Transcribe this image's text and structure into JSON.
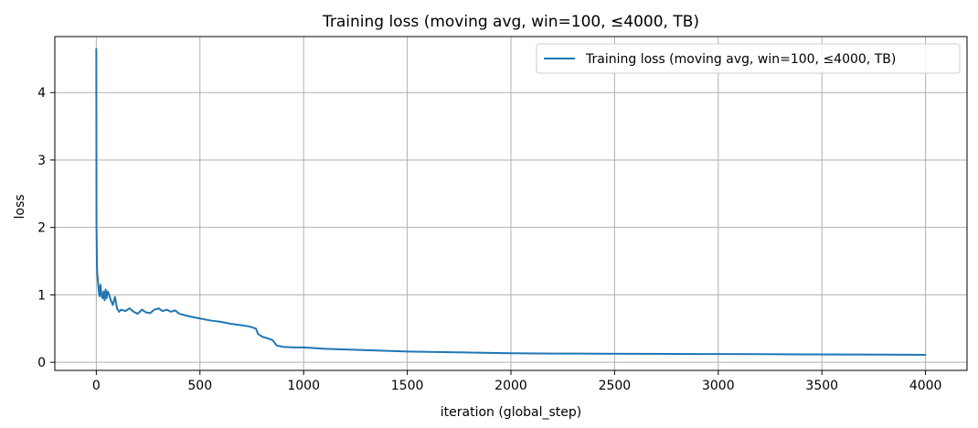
{
  "chart_data": {
    "type": "line",
    "title": "Training loss (moving avg, win=100, ≤4000, TB)",
    "xlabel": "iteration (global_step)",
    "ylabel": "loss",
    "xlim": [
      -200,
      4200
    ],
    "ylim": [
      -0.12,
      4.83
    ],
    "xticks": [
      0,
      500,
      1000,
      1500,
      2000,
      2500,
      3000,
      3500,
      4000
    ],
    "yticks": [
      0,
      1,
      2,
      3,
      4
    ],
    "grid": true,
    "legend_position": "top-right",
    "series": [
      {
        "name": "Training loss (moving avg, win=100, ≤4000, TB)",
        "color": "#1f77b4",
        "x": [
          0,
          1,
          2,
          3,
          5,
          8,
          12,
          16,
          20,
          25,
          30,
          35,
          40,
          45,
          50,
          55,
          60,
          70,
          80,
          90,
          100,
          110,
          120,
          140,
          160,
          180,
          200,
          220,
          240,
          260,
          280,
          300,
          320,
          340,
          360,
          380,
          400,
          450,
          500,
          550,
          600,
          650,
          700,
          740,
          770,
          780,
          800,
          820,
          850,
          870,
          900,
          950,
          1000,
          1050,
          1100,
          1200,
          1300,
          1400,
          1500,
          1600,
          1700,
          1800,
          1900,
          2000,
          2200,
          2400,
          2600,
          2800,
          3000,
          3200,
          3400,
          3600,
          3800,
          3900,
          4000
        ],
        "values": [
          4.65,
          2.0,
          1.8,
          1.45,
          1.3,
          1.2,
          1.05,
          0.98,
          1.15,
          1.0,
          0.95,
          1.05,
          0.92,
          1.08,
          0.95,
          1.05,
          1.02,
          0.92,
          0.85,
          0.97,
          0.8,
          0.75,
          0.78,
          0.76,
          0.8,
          0.75,
          0.72,
          0.78,
          0.74,
          0.73,
          0.78,
          0.8,
          0.76,
          0.78,
          0.75,
          0.77,
          0.72,
          0.68,
          0.65,
          0.62,
          0.6,
          0.57,
          0.55,
          0.53,
          0.5,
          0.42,
          0.38,
          0.36,
          0.33,
          0.25,
          0.23,
          0.22,
          0.22,
          0.21,
          0.2,
          0.19,
          0.18,
          0.17,
          0.16,
          0.155,
          0.15,
          0.145,
          0.14,
          0.135,
          0.13,
          0.128,
          0.126,
          0.124,
          0.122,
          0.12,
          0.118,
          0.116,
          0.114,
          0.112,
          0.11
        ]
      }
    ]
  }
}
